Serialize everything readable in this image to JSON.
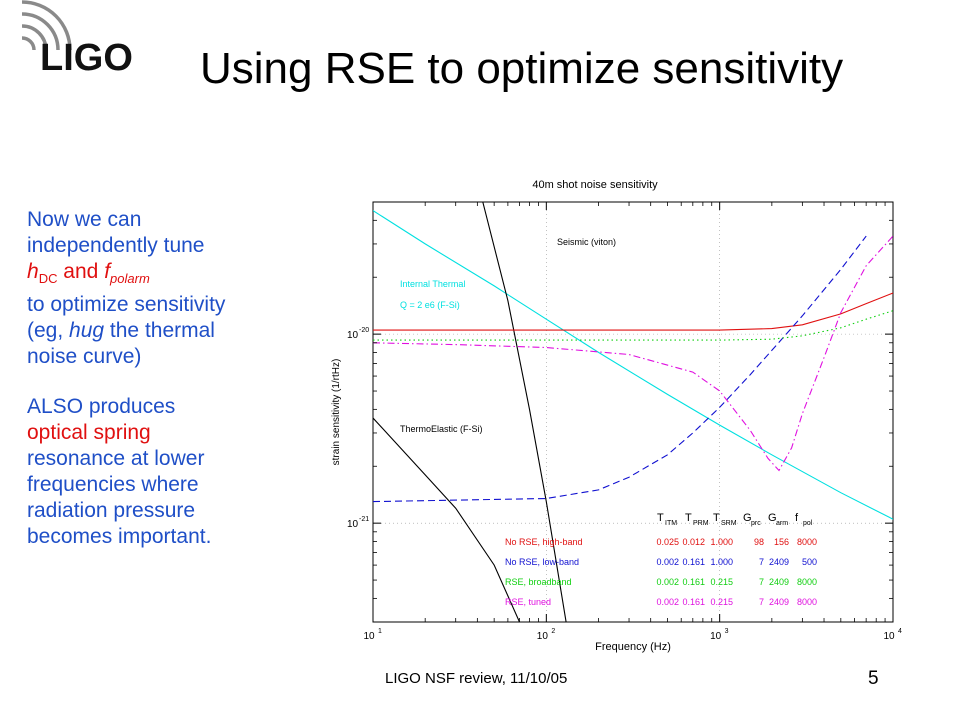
{
  "slide": {
    "logo_text": "LIGO",
    "title": "Using RSE to optimize sensitivity",
    "footer": "LIGO NSF review, 11/10/05",
    "page_number": "5",
    "text": {
      "l1": "Now we can",
      "l2": "independently tune",
      "h": "h",
      "h_sub": "DC",
      "and": " and ",
      "f": "f",
      "f_sub": "polarm",
      "l4": "to optimize sensitivity",
      "l5_a": "(eg, ",
      "l5_em": "hug",
      "l5_b": " the thermal",
      "l6": "noise curve)",
      "l7": "ALSO produces",
      "l8": "optical spring",
      "l9": "resonance at lower",
      "l10": "frequencies where",
      "l11": "radiation pressure",
      "l12": "becomes important."
    }
  },
  "chart_data": {
    "type": "line",
    "title": "40m shot noise sensitivity",
    "xlabel": "Frequency (Hz)",
    "ylabel": "strain sensitivity (1/rtHz)",
    "xscale": "log",
    "yscale": "log",
    "xlim": [
      10,
      10000
    ],
    "ylim": [
      3e-22,
      5e-20
    ],
    "x_ticks": [
      {
        "base": "10",
        "exp": "1"
      },
      {
        "base": "10",
        "exp": "2"
      },
      {
        "base": "10",
        "exp": "3"
      },
      {
        "base": "10",
        "exp": "4"
      }
    ],
    "y_ticks": [
      {
        "base": "10",
        "exp": "-20",
        "value": 1e-20
      },
      {
        "base": "10",
        "exp": "-21",
        "value": 1e-21
      }
    ],
    "annotations": [
      {
        "text": "Seismic (viton)",
        "color": "#000000"
      },
      {
        "text": "Internal Thermal",
        "color": "#00e0e0"
      },
      {
        "text": "Q = 2 e6 (F-Si)",
        "color": "#00e0e0"
      },
      {
        "text": "ThermoElastic (F-Si)",
        "color": "#000000"
      }
    ],
    "table": {
      "headers": [
        {
          "main": "T",
          "sub": "ITM"
        },
        {
          "main": "T",
          "sub": "PRM"
        },
        {
          "main": "T",
          "sub": "SRM"
        },
        {
          "main": "G",
          "sub": "prc"
        },
        {
          "main": "G",
          "sub": "arm"
        },
        {
          "main": "f",
          "sub": "pol"
        }
      ],
      "rows": [
        {
          "label": "No RSE, high-band",
          "color": "#e01010",
          "values": [
            "0.025",
            "0.012",
            "1.000",
            "98",
            "156",
            "8000"
          ]
        },
        {
          "label": "No RSE, low-band",
          "color": "#1010d0",
          "values": [
            "0.002",
            "0.161",
            "1.000",
            "7",
            "2409",
            "500"
          ]
        },
        {
          "label": "RSE, broadband",
          "color": "#10d010",
          "values": [
            "0.002",
            "0.161",
            "0.215",
            "7",
            "2409",
            "8000"
          ]
        },
        {
          "label": "RSE, tuned",
          "color": "#e010e0",
          "values": [
            "0.002",
            "0.161",
            "0.215",
            "7",
            "2409",
            "8000"
          ]
        }
      ]
    },
    "series": [
      {
        "color": "#00e0e0",
        "style": "solid",
        "x": [
          10,
          20,
          50,
          100,
          200,
          500,
          1000,
          2000,
          5000,
          10000
        ],
        "y": [
          4.5e-20,
          3e-20,
          1.8e-20,
          1.2e-20,
          8e-21,
          4.8e-21,
          3.3e-21,
          2.3e-21,
          1.45e-21,
          1.05e-21
        ]
      },
      {
        "color": "#000000",
        "style": "solid",
        "x": [
          43,
          60,
          80,
          100,
          130
        ],
        "y": [
          5e-20,
          1.5e-20,
          4e-21,
          1.3e-21,
          3e-22
        ]
      },
      {
        "color": "#000000",
        "style": "solid",
        "x": [
          10,
          20,
          30,
          50,
          70
        ],
        "y": [
          3.6e-21,
          1.8e-21,
          1.2e-21,
          6e-22,
          3e-22
        ]
      },
      {
        "color": "#e01010",
        "style": "solid",
        "x": [
          10,
          100,
          1000,
          2000,
          3000,
          5000,
          7000,
          10000
        ],
        "y": [
          1.05e-20,
          1.05e-20,
          1.05e-20,
          1.07e-20,
          1.12e-20,
          1.28e-20,
          1.45e-20,
          1.65e-20
        ]
      },
      {
        "color": "#1010d0",
        "style": "dashed",
        "x": [
          10,
          100,
          200,
          300,
          500,
          700,
          1000,
          1500,
          2000,
          3000,
          5000,
          7000
        ],
        "y": [
          1.3e-21,
          1.35e-21,
          1.5e-21,
          1.75e-21,
          2.3e-21,
          3e-21,
          4.1e-21,
          6.1e-21,
          8.2e-21,
          1.25e-20,
          2.2e-20,
          3.3e-20
        ]
      },
      {
        "color": "#10d010",
        "style": "dotted",
        "x": [
          10,
          100,
          1000,
          2000,
          3000,
          5000,
          7000,
          10000
        ],
        "y": [
          9.3e-21,
          9.3e-21,
          9.3e-21,
          9.4e-21,
          9.8e-21,
          1.08e-20,
          1.2e-20,
          1.33e-20
        ]
      },
      {
        "color": "#e010e0",
        "style": "dashdot",
        "x": [
          10,
          30,
          100,
          300,
          700,
          1000,
          1500,
          1900,
          2200,
          2600,
          3000,
          4000,
          5000,
          7000,
          10000
        ],
        "y": [
          9e-21,
          8.8e-21,
          8.5e-21,
          7.8e-21,
          6.3e-21,
          5e-21,
          3.1e-21,
          2.2e-21,
          1.9e-21,
          2.5e-21,
          3.8e-21,
          7.5e-21,
          1.3e-20,
          2.3e-20,
          3.3e-20
        ]
      }
    ]
  }
}
